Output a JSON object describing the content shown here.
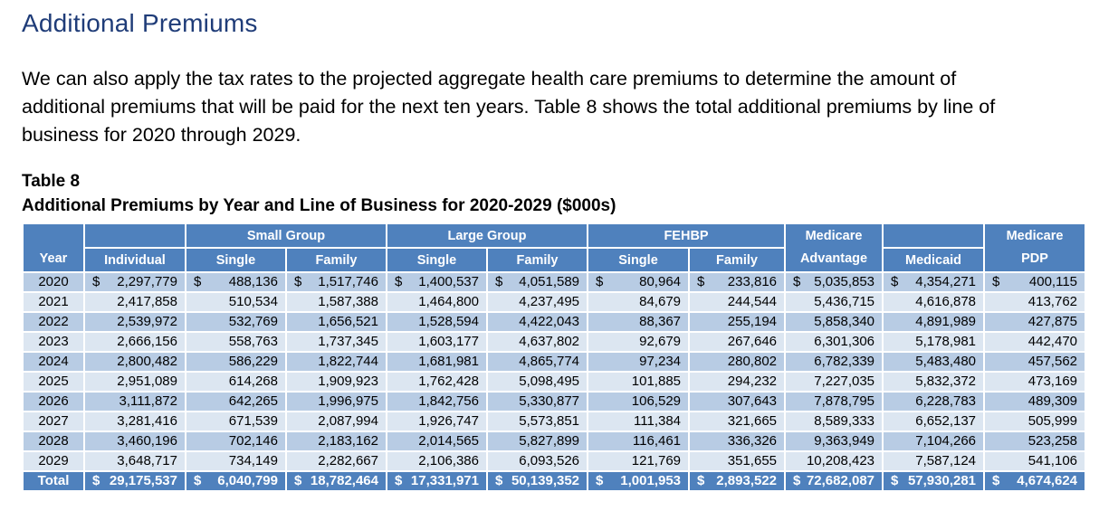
{
  "page": {
    "title": "Additional Premiums",
    "paragraph": "We can also apply the tax rates to the projected aggregate health care premiums to determine the amount of additional premiums that will be paid for the next ten years. Table 8 shows the total additional premiums by line of business for 2020 through 2029."
  },
  "colors": {
    "title_text": "#1F3C78",
    "header_bg": "#4F81BD",
    "band_dark": "#B8CCE4",
    "band_light": "#DCE6F1",
    "total_bg": "#4F81BD",
    "header_text": "#FFFFFF"
  },
  "table": {
    "caption_line1": "Table 8",
    "caption_line2": "Additional Premiums by Year and Line of Business for 2020-2029 ($000s)",
    "currency_symbol": "$",
    "header": {
      "year": "Year",
      "individual": "Individual",
      "small_group": "Small Group",
      "large_group": "Large Group",
      "fehbp": "FEHBP",
      "single": "Single",
      "family": "Family",
      "medicare": "Medicare",
      "advantage": "Advantage",
      "medicaid": "Medicaid",
      "pdp": "PDP"
    },
    "rows": [
      {
        "year": "2020",
        "dollar": true,
        "values": [
          "2,297,779",
          "488,136",
          "1,517,746",
          "1,400,537",
          "4,051,589",
          "80,964",
          "233,816",
          "5,035,853",
          "4,354,271",
          "400,115"
        ]
      },
      {
        "year": "2021",
        "dollar": false,
        "values": [
          "2,417,858",
          "510,534",
          "1,587,388",
          "1,464,800",
          "4,237,495",
          "84,679",
          "244,544",
          "5,436,715",
          "4,616,878",
          "413,762"
        ]
      },
      {
        "year": "2022",
        "dollar": false,
        "values": [
          "2,539,972",
          "532,769",
          "1,656,521",
          "1,528,594",
          "4,422,043",
          "88,367",
          "255,194",
          "5,858,340",
          "4,891,989",
          "427,875"
        ]
      },
      {
        "year": "2023",
        "dollar": false,
        "values": [
          "2,666,156",
          "558,763",
          "1,737,345",
          "1,603,177",
          "4,637,802",
          "92,679",
          "267,646",
          "6,301,306",
          "5,178,981",
          "442,470"
        ]
      },
      {
        "year": "2024",
        "dollar": false,
        "values": [
          "2,800,482",
          "586,229",
          "1,822,744",
          "1,681,981",
          "4,865,774",
          "97,234",
          "280,802",
          "6,782,339",
          "5,483,480",
          "457,562"
        ]
      },
      {
        "year": "2025",
        "dollar": false,
        "values": [
          "2,951,089",
          "614,268",
          "1,909,923",
          "1,762,428",
          "5,098,495",
          "101,885",
          "294,232",
          "7,227,035",
          "5,832,372",
          "473,169"
        ]
      },
      {
        "year": "2026",
        "dollar": false,
        "values": [
          "3,111,872",
          "642,265",
          "1,996,975",
          "1,842,756",
          "5,330,877",
          "106,529",
          "307,643",
          "7,878,795",
          "6,228,783",
          "489,309"
        ]
      },
      {
        "year": "2027",
        "dollar": false,
        "values": [
          "3,281,416",
          "671,539",
          "2,087,994",
          "1,926,747",
          "5,573,851",
          "111,384",
          "321,665",
          "8,589,333",
          "6,652,137",
          "505,999"
        ]
      },
      {
        "year": "2028",
        "dollar": false,
        "values": [
          "3,460,196",
          "702,146",
          "2,183,162",
          "2,014,565",
          "5,827,899",
          "116,461",
          "336,326",
          "9,363,949",
          "7,104,266",
          "523,258"
        ]
      },
      {
        "year": "2029",
        "dollar": false,
        "values": [
          "3,648,717",
          "734,149",
          "2,282,667",
          "2,106,386",
          "6,093,526",
          "121,769",
          "351,655",
          "10,208,423",
          "7,587,124",
          "541,106"
        ]
      }
    ],
    "total_row": {
      "label": "Total",
      "dollar": true,
      "values": [
        "29,175,537",
        "6,040,799",
        "18,782,464",
        "17,331,971",
        "50,139,352",
        "1,001,953",
        "2,893,522",
        "72,682,087",
        "57,930,281",
        "4,674,624"
      ]
    }
  }
}
